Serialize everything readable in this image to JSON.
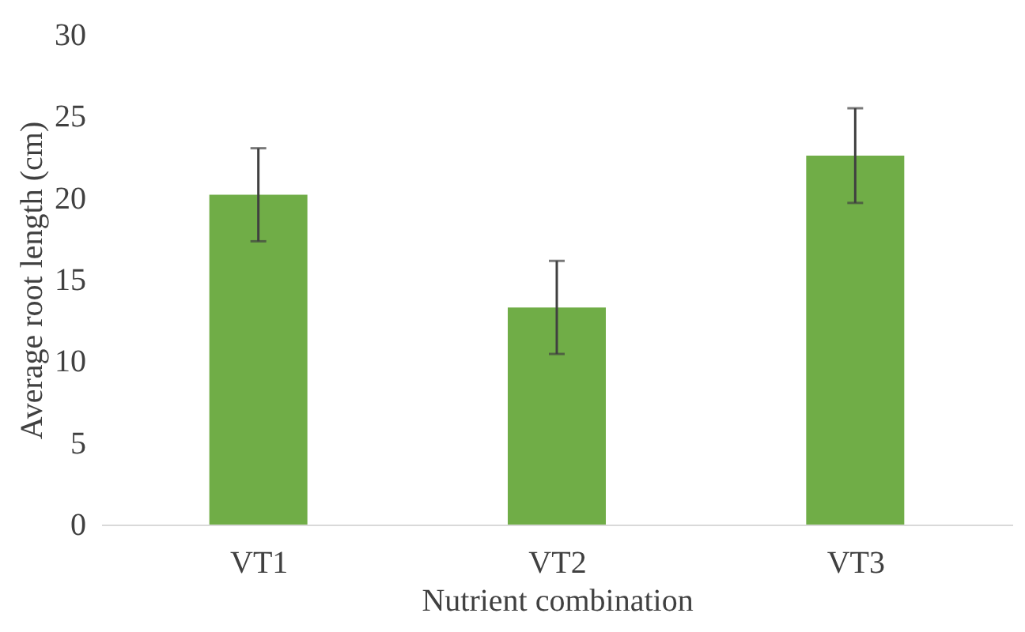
{
  "chart_data": {
    "type": "bar",
    "xlabel": "Nutrient combination",
    "ylabel": "Average root length (cm)",
    "categories": [
      "VT1",
      "VT2",
      "VT3"
    ],
    "values": [
      20.2,
      13.3,
      22.6
    ],
    "errors": [
      2.85,
      2.85,
      2.9
    ],
    "color": "#70ad47",
    "ylim": [
      0,
      30
    ],
    "yticks": [
      0,
      5,
      10,
      15,
      20,
      25,
      30
    ],
    "grid": false
  }
}
